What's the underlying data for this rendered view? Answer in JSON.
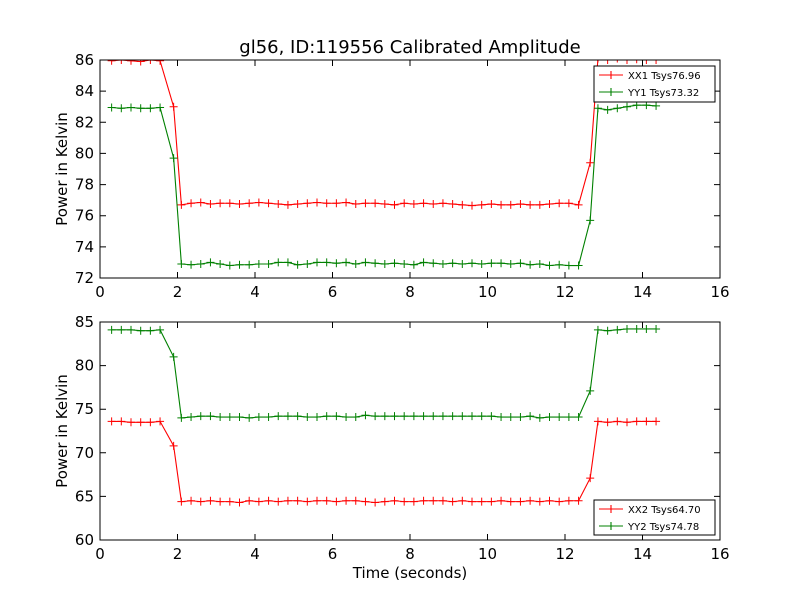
{
  "title": "gl56, ID:119556 Calibrated Amplitude",
  "colors": {
    "red": "#ff0000",
    "green": "#008000"
  },
  "chart_data": [
    {
      "type": "line",
      "xlabel": "",
      "ylabel": "Power in Kelvin",
      "xlim": [
        0,
        16
      ],
      "ylim": [
        72,
        86
      ],
      "xticks": [
        0,
        2,
        4,
        6,
        8,
        10,
        12,
        14,
        16
      ],
      "yticks": [
        72,
        74,
        76,
        78,
        80,
        82,
        84,
        86
      ],
      "grid": false,
      "legend_position": "top-right",
      "x": [
        0.3,
        0.55,
        0.8,
        1.05,
        1.3,
        1.55,
        1.9,
        2.1,
        2.35,
        2.6,
        2.85,
        3.1,
        3.35,
        3.6,
        3.85,
        4.1,
        4.35,
        4.6,
        4.85,
        5.1,
        5.35,
        5.6,
        5.85,
        6.1,
        6.35,
        6.6,
        6.85,
        7.1,
        7.35,
        7.6,
        7.85,
        8.1,
        8.35,
        8.6,
        8.85,
        9.1,
        9.35,
        9.6,
        9.85,
        10.1,
        10.35,
        10.6,
        10.85,
        11.1,
        11.35,
        11.6,
        11.85,
        12.1,
        12.35,
        12.65,
        12.85,
        13.1,
        13.35,
        13.6,
        13.85,
        14.1,
        14.35
      ],
      "series": [
        {
          "name": "XX1 Tsys76.96",
          "color": "#ff0000",
          "values": [
            85.95,
            86.0,
            85.95,
            85.9,
            86.0,
            85.95,
            83.0,
            76.7,
            76.8,
            76.85,
            76.75,
            76.8,
            76.8,
            76.75,
            76.8,
            76.85,
            76.8,
            76.75,
            76.7,
            76.75,
            76.8,
            76.85,
            76.8,
            76.8,
            76.85,
            76.75,
            76.8,
            76.8,
            76.75,
            76.7,
            76.8,
            76.75,
            76.8,
            76.75,
            76.8,
            76.75,
            76.7,
            76.65,
            76.7,
            76.75,
            76.7,
            76.7,
            76.75,
            76.7,
            76.7,
            76.75,
            76.8,
            76.8,
            76.7,
            79.4,
            86.1,
            86.0,
            86.1,
            86.0,
            86.05,
            86.0,
            86.0
          ]
        },
        {
          "name": "YY1 Tsys73.32",
          "color": "#008000",
          "values": [
            82.95,
            82.9,
            82.95,
            82.9,
            82.9,
            82.95,
            79.7,
            72.9,
            72.85,
            72.9,
            73.0,
            72.9,
            72.8,
            72.85,
            72.85,
            72.9,
            72.9,
            73.0,
            73.0,
            72.85,
            72.9,
            73.0,
            73.0,
            72.95,
            73.0,
            72.9,
            73.0,
            72.95,
            72.9,
            72.95,
            72.9,
            72.85,
            73.0,
            72.95,
            72.9,
            72.95,
            72.9,
            72.95,
            72.9,
            72.95,
            72.95,
            72.9,
            72.95,
            72.85,
            72.9,
            72.8,
            72.85,
            72.8,
            72.8,
            75.7,
            82.9,
            82.8,
            82.9,
            83.0,
            83.1,
            83.1,
            83.05
          ]
        }
      ]
    },
    {
      "type": "line",
      "xlabel": "Time (seconds)",
      "ylabel": "Power in Kelvin",
      "xlim": [
        0,
        16
      ],
      "ylim": [
        60,
        85
      ],
      "xticks": [
        0,
        2,
        4,
        6,
        8,
        10,
        12,
        14,
        16
      ],
      "yticks": [
        60,
        65,
        70,
        75,
        80,
        85
      ],
      "grid": false,
      "legend_position": "bottom-right",
      "x": [
        0.3,
        0.55,
        0.8,
        1.05,
        1.3,
        1.55,
        1.9,
        2.1,
        2.35,
        2.6,
        2.85,
        3.1,
        3.35,
        3.6,
        3.85,
        4.1,
        4.35,
        4.6,
        4.85,
        5.1,
        5.35,
        5.6,
        5.85,
        6.1,
        6.35,
        6.6,
        6.85,
        7.1,
        7.35,
        7.6,
        7.85,
        8.1,
        8.35,
        8.6,
        8.85,
        9.1,
        9.35,
        9.6,
        9.85,
        10.1,
        10.35,
        10.6,
        10.85,
        11.1,
        11.35,
        11.6,
        11.85,
        12.1,
        12.35,
        12.65,
        12.85,
        13.1,
        13.35,
        13.6,
        13.85,
        14.1,
        14.35
      ],
      "series": [
        {
          "name": "XX2 Tsys64.70",
          "color": "#ff0000",
          "values": [
            73.6,
            73.6,
            73.5,
            73.5,
            73.5,
            73.6,
            70.8,
            64.4,
            64.5,
            64.4,
            64.5,
            64.4,
            64.4,
            64.3,
            64.5,
            64.4,
            64.5,
            64.4,
            64.5,
            64.5,
            64.4,
            64.5,
            64.5,
            64.4,
            64.5,
            64.5,
            64.4,
            64.3,
            64.4,
            64.5,
            64.4,
            64.4,
            64.5,
            64.5,
            64.5,
            64.4,
            64.5,
            64.4,
            64.4,
            64.4,
            64.5,
            64.4,
            64.4,
            64.5,
            64.4,
            64.5,
            64.4,
            64.5,
            64.5,
            67.1,
            73.6,
            73.5,
            73.6,
            73.5,
            73.6,
            73.6,
            73.6
          ]
        },
        {
          "name": "YY2 Tsys74.78",
          "color": "#008000",
          "values": [
            84.1,
            84.1,
            84.1,
            84.0,
            84.0,
            84.1,
            81.0,
            74.0,
            74.1,
            74.2,
            74.2,
            74.1,
            74.1,
            74.1,
            74.0,
            74.1,
            74.1,
            74.2,
            74.2,
            74.2,
            74.1,
            74.1,
            74.2,
            74.2,
            74.1,
            74.1,
            74.3,
            74.2,
            74.2,
            74.2,
            74.2,
            74.2,
            74.2,
            74.2,
            74.2,
            74.2,
            74.2,
            74.2,
            74.2,
            74.2,
            74.1,
            74.1,
            74.1,
            74.2,
            74.0,
            74.1,
            74.1,
            74.1,
            74.1,
            77.1,
            84.1,
            84.0,
            84.1,
            84.2,
            84.2,
            84.2,
            84.2
          ]
        }
      ]
    }
  ]
}
